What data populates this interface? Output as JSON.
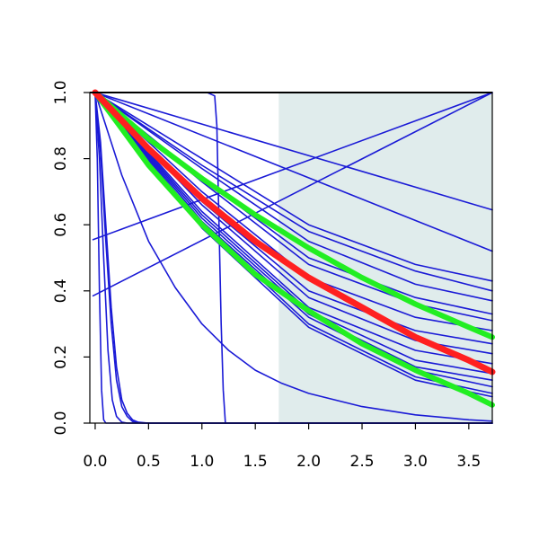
{
  "chart_data": {
    "type": "line",
    "title": "",
    "xlabel": "",
    "ylabel": "",
    "xlim": [
      -0.05,
      3.72
    ],
    "ylim": [
      0.0,
      1.0
    ],
    "x_ticks": [
      "0.0",
      "0.5",
      "1.0",
      "1.5",
      "2.0",
      "2.5",
      "3.0",
      "3.5"
    ],
    "y_ticks": [
      "0.0",
      "0.2",
      "0.4",
      "0.6",
      "0.8",
      "1.0"
    ],
    "grid": false,
    "legend": "none",
    "shaded_region": {
      "x_from": 1.72,
      "x_to": 3.72,
      "color": "#e0ecec"
    },
    "colors": {
      "blue": "#1a1ad6",
      "red": "#ff2020",
      "green": "#22ee22",
      "axis": "#000000"
    },
    "series": [
      {
        "color": "blue",
        "width": 1.6,
        "points": [
          [
            0,
            1
          ],
          [
            0.02,
            0.8
          ],
          [
            0.04,
            0.4
          ],
          [
            0.06,
            0.1
          ],
          [
            0.08,
            0.01
          ],
          [
            0.1,
            0
          ],
          [
            3.72,
            0
          ]
        ]
      },
      {
        "color": "blue",
        "width": 1.6,
        "points": [
          [
            0,
            1
          ],
          [
            0.04,
            0.8
          ],
          [
            0.08,
            0.5
          ],
          [
            0.12,
            0.22
          ],
          [
            0.16,
            0.07
          ],
          [
            0.2,
            0.02
          ],
          [
            0.25,
            0.003
          ],
          [
            0.3,
            0
          ],
          [
            3.72,
            0
          ]
        ]
      },
      {
        "color": "blue",
        "width": 1.6,
        "points": [
          [
            0,
            1
          ],
          [
            0.05,
            0.82
          ],
          [
            0.1,
            0.55
          ],
          [
            0.15,
            0.3
          ],
          [
            0.2,
            0.13
          ],
          [
            0.25,
            0.05
          ],
          [
            0.3,
            0.02
          ],
          [
            0.35,
            0.005
          ],
          [
            0.45,
            0
          ],
          [
            3.72,
            0
          ]
        ]
      },
      {
        "color": "blue",
        "width": 1.6,
        "points": [
          [
            0,
            1
          ],
          [
            0.05,
            0.85
          ],
          [
            0.1,
            0.6
          ],
          [
            0.15,
            0.35
          ],
          [
            0.2,
            0.17
          ],
          [
            0.25,
            0.07
          ],
          [
            0.3,
            0.03
          ],
          [
            0.35,
            0.01
          ],
          [
            0.4,
            0.003
          ],
          [
            0.5,
            0
          ],
          [
            3.72,
            0
          ]
        ]
      },
      {
        "color": "blue",
        "width": 1.6,
        "points": [
          [
            0,
            1
          ],
          [
            1.05,
            1
          ],
          [
            1.12,
            0.99
          ],
          [
            1.14,
            0.9
          ],
          [
            1.16,
            0.6
          ],
          [
            1.18,
            0.3
          ],
          [
            1.2,
            0.1
          ],
          [
            1.22,
            0
          ],
          [
            3.72,
            0
          ]
        ]
      },
      {
        "color": "blue",
        "width": 1.6,
        "points": [
          [
            0,
            1
          ],
          [
            0.25,
            0.75
          ],
          [
            0.5,
            0.55
          ],
          [
            0.75,
            0.41
          ],
          [
            1,
            0.3
          ],
          [
            1.25,
            0.22
          ],
          [
            1.5,
            0.16
          ],
          [
            1.75,
            0.12
          ],
          [
            2,
            0.09
          ],
          [
            2.5,
            0.05
          ],
          [
            3,
            0.025
          ],
          [
            3.5,
            0.01
          ],
          [
            3.72,
            0.006
          ]
        ]
      },
      {
        "color": "blue",
        "width": 1.6,
        "points": [
          [
            -0.02,
            0.385
          ],
          [
            3.72,
            1.0
          ]
        ]
      },
      {
        "color": "blue",
        "width": 1.6,
        "points": [
          [
            -0.02,
            0.555
          ],
          [
            3.72,
            1.0
          ]
        ]
      },
      {
        "color": "blue",
        "width": 1.6,
        "points": [
          [
            0,
            1
          ],
          [
            3.72,
            0.645
          ]
        ]
      },
      {
        "color": "blue",
        "width": 1.6,
        "points": [
          [
            0,
            1
          ],
          [
            3.72,
            0.52
          ]
        ]
      },
      {
        "color": "blue",
        "width": 1.6,
        "points": [
          [
            0,
            1
          ],
          [
            1,
            0.8
          ],
          [
            2,
            0.6
          ],
          [
            3,
            0.48
          ],
          [
            3.72,
            0.43
          ]
        ]
      },
      {
        "color": "blue",
        "width": 1.6,
        "points": [
          [
            0,
            1
          ],
          [
            1,
            0.78
          ],
          [
            2,
            0.58
          ],
          [
            3,
            0.46
          ],
          [
            3.72,
            0.4
          ]
        ]
      },
      {
        "color": "blue",
        "width": 1.6,
        "points": [
          [
            0,
            1
          ],
          [
            1,
            0.77
          ],
          [
            2,
            0.55
          ],
          [
            3,
            0.42
          ],
          [
            3.72,
            0.37
          ]
        ]
      },
      {
        "color": "blue",
        "width": 1.6,
        "points": [
          [
            0,
            1
          ],
          [
            1,
            0.74
          ],
          [
            2,
            0.5
          ],
          [
            3,
            0.38
          ],
          [
            3.72,
            0.33
          ]
        ]
      },
      {
        "color": "blue",
        "width": 1.6,
        "points": [
          [
            0,
            1
          ],
          [
            1,
            0.73
          ],
          [
            2,
            0.48
          ],
          [
            3,
            0.36
          ],
          [
            3.72,
            0.31
          ]
        ]
      },
      {
        "color": "blue",
        "width": 1.6,
        "points": [
          [
            0,
            1
          ],
          [
            1,
            0.7
          ],
          [
            2,
            0.44
          ],
          [
            3,
            0.32
          ],
          [
            3.72,
            0.28
          ]
        ]
      },
      {
        "color": "blue",
        "width": 1.6,
        "points": [
          [
            0,
            1
          ],
          [
            1,
            0.67
          ],
          [
            2,
            0.4
          ],
          [
            3,
            0.28
          ],
          [
            3.72,
            0.24
          ]
        ]
      },
      {
        "color": "blue",
        "width": 1.6,
        "points": [
          [
            0,
            1
          ],
          [
            1,
            0.66
          ],
          [
            2,
            0.38
          ],
          [
            3,
            0.25
          ],
          [
            3.72,
            0.21
          ]
        ]
      },
      {
        "color": "blue",
        "width": 1.6,
        "points": [
          [
            0,
            1
          ],
          [
            1,
            0.64
          ],
          [
            2,
            0.35
          ],
          [
            3,
            0.22
          ],
          [
            3.72,
            0.18
          ]
        ]
      },
      {
        "color": "blue",
        "width": 1.6,
        "points": [
          [
            0,
            1
          ],
          [
            1,
            0.63
          ],
          [
            2,
            0.34
          ],
          [
            3,
            0.19
          ],
          [
            3.72,
            0.15
          ]
        ]
      },
      {
        "color": "blue",
        "width": 1.6,
        "points": [
          [
            0,
            1
          ],
          [
            1,
            0.62
          ],
          [
            2,
            0.33
          ],
          [
            3,
            0.17
          ],
          [
            3.72,
            0.13
          ]
        ]
      },
      {
        "color": "blue",
        "width": 1.6,
        "points": [
          [
            0,
            1
          ],
          [
            1,
            0.61
          ],
          [
            2,
            0.32
          ],
          [
            3,
            0.16
          ],
          [
            3.72,
            0.11
          ]
        ]
      },
      {
        "color": "blue",
        "width": 1.6,
        "points": [
          [
            0,
            1
          ],
          [
            1,
            0.6
          ],
          [
            2,
            0.3
          ],
          [
            3,
            0.14
          ],
          [
            3.72,
            0.09
          ]
        ]
      },
      {
        "color": "blue",
        "width": 1.6,
        "points": [
          [
            0,
            1
          ],
          [
            1,
            0.59
          ],
          [
            2,
            0.29
          ],
          [
            3,
            0.13
          ],
          [
            3.72,
            0.08
          ]
        ]
      },
      {
        "color": "green",
        "width": 6,
        "points": [
          [
            0,
            1
          ],
          [
            0.5,
            0.86
          ],
          [
            1,
            0.74
          ],
          [
            1.5,
            0.63
          ],
          [
            2,
            0.53
          ],
          [
            2.5,
            0.44
          ],
          [
            3,
            0.36
          ],
          [
            3.5,
            0.29
          ],
          [
            3.72,
            0.26
          ]
        ]
      },
      {
        "color": "green",
        "width": 6,
        "points": [
          [
            0,
            1
          ],
          [
            0.5,
            0.78
          ],
          [
            1,
            0.6
          ],
          [
            1.5,
            0.45
          ],
          [
            2,
            0.34
          ],
          [
            2.5,
            0.24
          ],
          [
            3,
            0.16
          ],
          [
            3.5,
            0.09
          ],
          [
            3.72,
            0.055
          ]
        ]
      },
      {
        "color": "red",
        "width": 7,
        "points": [
          [
            0,
            1
          ],
          [
            0.5,
            0.83
          ],
          [
            1,
            0.68
          ],
          [
            1.5,
            0.55
          ],
          [
            2,
            0.44
          ],
          [
            2.5,
            0.35
          ],
          [
            3,
            0.26
          ],
          [
            3.5,
            0.19
          ],
          [
            3.72,
            0.155
          ]
        ]
      }
    ]
  }
}
